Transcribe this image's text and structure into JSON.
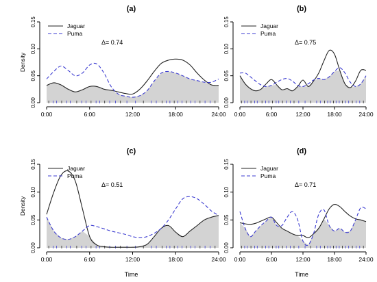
{
  "colors": {
    "jaguar": "#222222",
    "puma": "#3a3ad0",
    "overlap": "#d3d3d3"
  },
  "chart_data": [
    {
      "type": "line",
      "title": "(a)",
      "xlabel": "",
      "ylabel": "Density",
      "xlim": [
        0,
        24
      ],
      "ylim": [
        0,
        0.15
      ],
      "xticks": [
        "0:00",
        "6:00",
        "12:00",
        "18:00",
        "24:00"
      ],
      "yticks": [
        "0.00",
        "0.05",
        "0.10",
        "0.15"
      ],
      "legend": {
        "position": "top-left",
        "entries": [
          "Jaguar",
          "Puma"
        ]
      },
      "annotation": "Δ= 0.74",
      "x": [
        0,
        1,
        2,
        3,
        4,
        5,
        6,
        7,
        8,
        9,
        10,
        11,
        12,
        13,
        14,
        15,
        16,
        17,
        18,
        19,
        20,
        21,
        22,
        23,
        24
      ],
      "series": [
        {
          "name": "Jaguar",
          "style": "solid",
          "values": [
            0.032,
            0.037,
            0.033,
            0.025,
            0.02,
            0.024,
            0.03,
            0.03,
            0.025,
            0.023,
            0.02,
            0.017,
            0.016,
            0.025,
            0.04,
            0.058,
            0.073,
            0.079,
            0.081,
            0.079,
            0.07,
            0.055,
            0.042,
            0.033,
            0.032
          ]
        },
        {
          "name": "Puma",
          "style": "dashed",
          "values": [
            0.044,
            0.058,
            0.068,
            0.06,
            0.05,
            0.055,
            0.07,
            0.072,
            0.055,
            0.03,
            0.016,
            0.012,
            0.01,
            0.013,
            0.022,
            0.04,
            0.055,
            0.058,
            0.055,
            0.05,
            0.044,
            0.041,
            0.038,
            0.038,
            0.044
          ]
        }
      ]
    },
    {
      "type": "line",
      "title": "(b)",
      "xlabel": "",
      "ylabel": "",
      "xlim": [
        0,
        24
      ],
      "ylim": [
        0,
        0.15
      ],
      "xticks": [
        "0:00",
        "6:00",
        "12:00",
        "18:00",
        "24:00"
      ],
      "yticks": [
        "0.00",
        "0.05",
        "0.10",
        "0.15"
      ],
      "legend": {
        "position": "top-left",
        "entries": [
          "Jaguar",
          "Puma"
        ]
      },
      "annotation": "Δ= 0.75",
      "x": [
        0,
        1,
        2,
        3,
        4,
        5,
        6,
        7,
        8,
        9,
        10,
        11,
        12,
        13,
        14,
        15,
        16,
        17,
        18,
        19,
        20,
        21,
        22,
        23,
        24
      ],
      "series": [
        {
          "name": "Jaguar",
          "style": "solid",
          "values": [
            0.05,
            0.035,
            0.026,
            0.022,
            0.025,
            0.035,
            0.043,
            0.033,
            0.024,
            0.026,
            0.022,
            0.03,
            0.042,
            0.03,
            0.04,
            0.055,
            0.078,
            0.097,
            0.09,
            0.06,
            0.035,
            0.028,
            0.04,
            0.06,
            0.06
          ]
        },
        {
          "name": "Puma",
          "style": "dashed",
          "values": [
            0.055,
            0.055,
            0.048,
            0.04,
            0.033,
            0.03,
            0.032,
            0.038,
            0.043,
            0.045,
            0.04,
            0.032,
            0.03,
            0.035,
            0.042,
            0.045,
            0.043,
            0.048,
            0.058,
            0.065,
            0.055,
            0.038,
            0.03,
            0.035,
            0.05
          ]
        }
      ]
    },
    {
      "type": "line",
      "title": "(c)",
      "xlabel": "Time",
      "ylabel": "Density",
      "xlim": [
        0,
        24
      ],
      "ylim": [
        0,
        0.15
      ],
      "xticks": [
        "0:00",
        "6:00",
        "12:00",
        "18:00",
        "24:00"
      ],
      "yticks": [
        "0.00",
        "0.05",
        "0.10",
        "0.15"
      ],
      "legend": {
        "position": "top-left",
        "entries": [
          "Jaguar",
          "Puma"
        ]
      },
      "annotation": "Δ= 0.51",
      "x": [
        0,
        1,
        2,
        3,
        4,
        5,
        6,
        7,
        8,
        9,
        10,
        11,
        12,
        13,
        14,
        15,
        16,
        17,
        18,
        19,
        20,
        21,
        22,
        23,
        24
      ],
      "series": [
        {
          "name": "Jaguar",
          "style": "solid",
          "values": [
            0.06,
            0.1,
            0.13,
            0.138,
            0.12,
            0.07,
            0.02,
            0.005,
            0.002,
            0.001,
            0.001,
            0.001,
            0.001,
            0.002,
            0.006,
            0.02,
            0.035,
            0.04,
            0.028,
            0.02,
            0.03,
            0.04,
            0.05,
            0.055,
            0.058
          ]
        },
        {
          "name": "Puma",
          "style": "dashed",
          "values": [
            0.055,
            0.03,
            0.018,
            0.015,
            0.02,
            0.03,
            0.04,
            0.038,
            0.034,
            0.03,
            0.027,
            0.024,
            0.02,
            0.018,
            0.02,
            0.026,
            0.035,
            0.05,
            0.07,
            0.088,
            0.092,
            0.088,
            0.078,
            0.066,
            0.058
          ]
        }
      ]
    },
    {
      "type": "line",
      "title": "(d)",
      "xlabel": "Time",
      "ylabel": "",
      "xlim": [
        0,
        24
      ],
      "ylim": [
        0,
        0.15
      ],
      "xticks": [
        "0:00",
        "6:00",
        "12:00",
        "18:00",
        "24:00"
      ],
      "yticks": [
        "0.00",
        "0.05",
        "0.10",
        "0.15"
      ],
      "legend": {
        "position": "top-left",
        "entries": [
          "Jaguar",
          "Puma"
        ]
      },
      "annotation": "Δ= 0.71",
      "x": [
        0,
        1,
        2,
        3,
        4,
        5,
        6,
        7,
        8,
        9,
        10,
        11,
        12,
        13,
        14,
        15,
        16,
        17,
        18,
        19,
        20,
        21,
        22,
        23,
        24
      ],
      "series": [
        {
          "name": "Jaguar",
          "style": "solid",
          "values": [
            0.045,
            0.043,
            0.042,
            0.044,
            0.048,
            0.052,
            0.055,
            0.045,
            0.035,
            0.03,
            0.025,
            0.022,
            0.022,
            0.018,
            0.025,
            0.035,
            0.052,
            0.07,
            0.078,
            0.074,
            0.065,
            0.057,
            0.052,
            0.05,
            0.047
          ]
        },
        {
          "name": "Puma",
          "style": "dashed",
          "values": [
            0.065,
            0.035,
            0.02,
            0.03,
            0.04,
            0.048,
            0.055,
            0.04,
            0.04,
            0.055,
            0.065,
            0.05,
            0.012,
            0.005,
            0.025,
            0.06,
            0.068,
            0.04,
            0.03,
            0.035,
            0.028,
            0.03,
            0.05,
            0.072,
            0.07
          ]
        }
      ]
    }
  ]
}
